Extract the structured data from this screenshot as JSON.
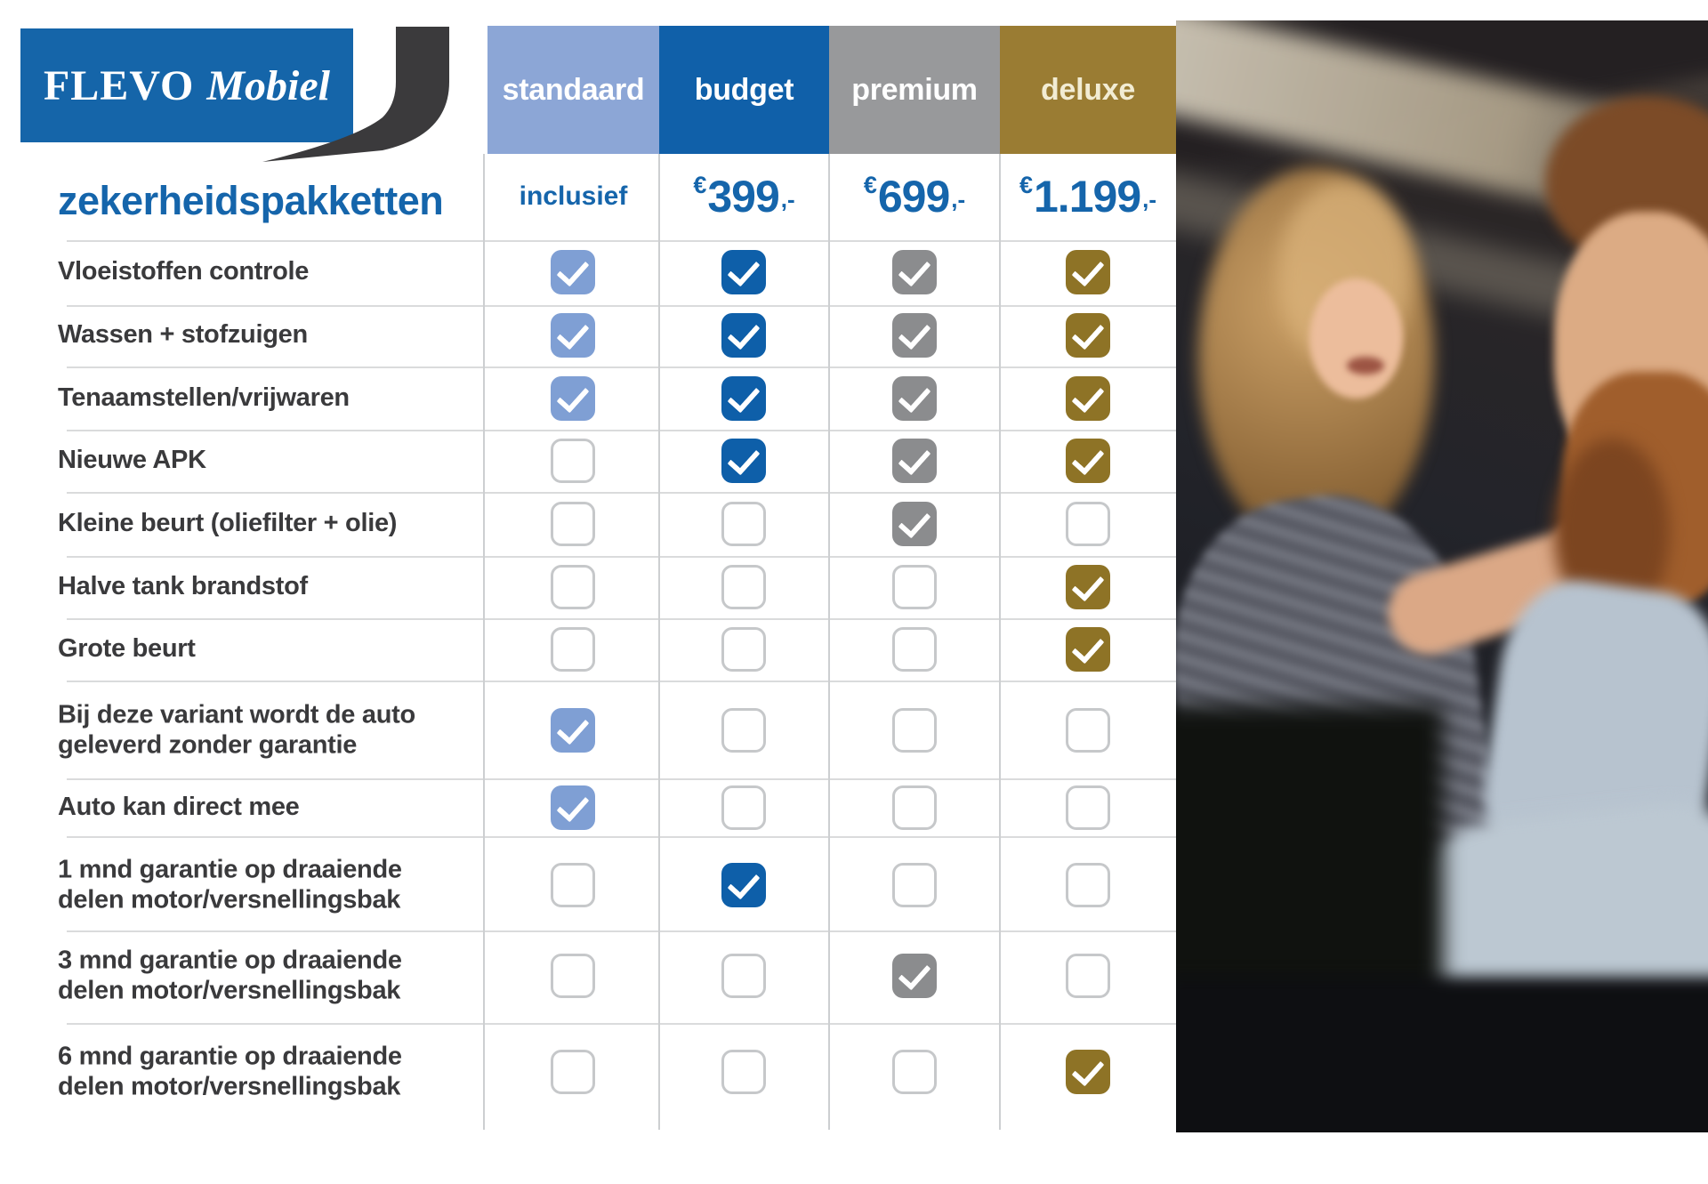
{
  "brand": {
    "flevo": "FLEVO",
    "mobiel": "Mobiel"
  },
  "title": "zekerheidspakketten",
  "colors": {
    "brand_blue": "#1565a9",
    "title_blue": "#1565ab",
    "feature_text": "#3a3a3c",
    "swoosh_dark": "#3b3a3c",
    "unchecked_border": "#c6c8ca"
  },
  "columns": [
    {
      "label": "standaard",
      "header_bg": "#8ca6d6",
      "check_bg": "#7f9fd4",
      "label_color": "#ffffff",
      "price_text": "inclusief"
    },
    {
      "label": "budget",
      "header_bg": "#1060a9",
      "check_bg": "#0e5fa9",
      "label_color": "#ffffff",
      "price": {
        "currency": "€",
        "amount": "399",
        "suffix": ",-"
      }
    },
    {
      "label": "premium",
      "header_bg": "#98999b",
      "check_bg": "#8b8c8e",
      "label_color": "#ffffff",
      "price": {
        "currency": "€",
        "amount": "699",
        "suffix": ",-"
      }
    },
    {
      "label": "deluxe",
      "header_bg": "#9a7c33",
      "check_bg": "#8e7326",
      "label_color": "#f2ecd3",
      "price": {
        "currency": "€",
        "amount": "1.199",
        "suffix": ",-"
      }
    }
  ],
  "table": {
    "rows": [
      {
        "label": "Vloeistoffen controle",
        "checks": [
          true,
          true,
          true,
          true
        ]
      },
      {
        "label": "Wassen + stofzuigen",
        "checks": [
          true,
          true,
          true,
          true
        ]
      },
      {
        "label": "Tenaamstellen/vrijwaren",
        "checks": [
          true,
          true,
          true,
          true
        ]
      },
      {
        "label": "Nieuwe APK",
        "checks": [
          false,
          true,
          true,
          true
        ]
      },
      {
        "label": "Kleine beurt (oliefilter + olie)",
        "checks": [
          false,
          false,
          true,
          false
        ]
      },
      {
        "label": "Halve tank brandstof",
        "checks": [
          false,
          false,
          false,
          true
        ]
      },
      {
        "label": "Grote beurt",
        "checks": [
          false,
          false,
          false,
          true
        ]
      },
      {
        "label": "Bij deze variant wordt de auto\ngeleverd zonder garantie",
        "checks": [
          true,
          false,
          false,
          false
        ]
      },
      {
        "label": "Auto kan direct mee",
        "checks": [
          true,
          false,
          false,
          false
        ]
      },
      {
        "label": "1 mnd garantie op draaiende\ndelen motor/versnellingsbak",
        "checks": [
          false,
          true,
          false,
          false
        ]
      },
      {
        "label": "3 mnd garantie op draaiende\ndelen motor/versnellingsbak",
        "checks": [
          false,
          false,
          true,
          false
        ]
      },
      {
        "label": "6 mnd garantie op draaiende\ndelen motor/versnellingsbak",
        "checks": [
          false,
          false,
          false,
          true
        ]
      }
    ]
  },
  "photo": {
    "description": "couple sitting in a car, woman smiling behind bearded man"
  }
}
